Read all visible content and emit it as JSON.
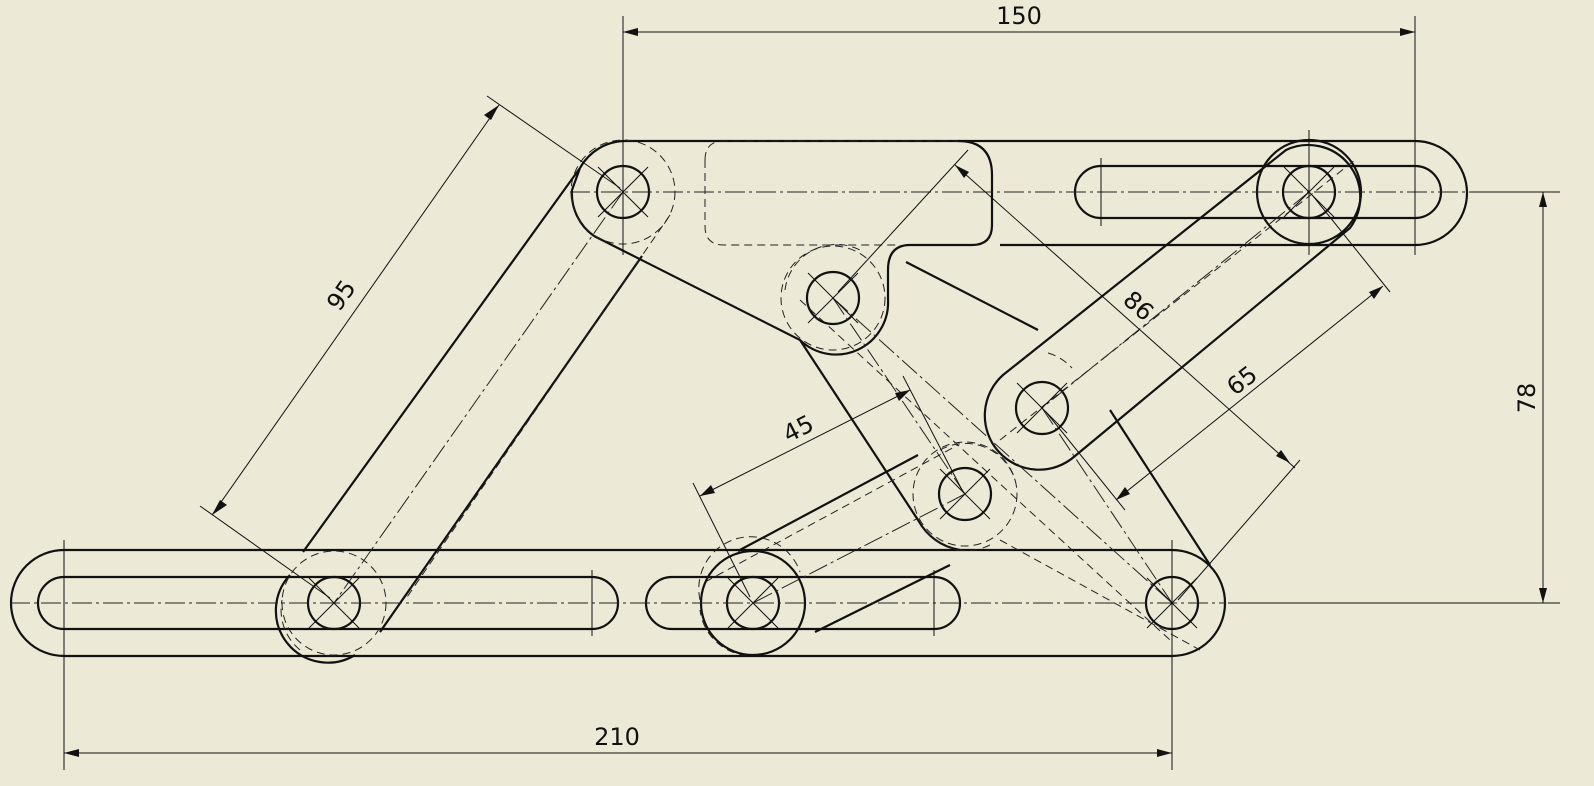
{
  "drawing": {
    "background": "#ecead6",
    "line_color": "#111111",
    "dimensions": {
      "top_span": "150",
      "bottom_span": "210",
      "right_height": "78",
      "left_link_length": "95",
      "diagonal_86": "86",
      "diagonal_65": "65",
      "diagonal_45": "45"
    }
  }
}
